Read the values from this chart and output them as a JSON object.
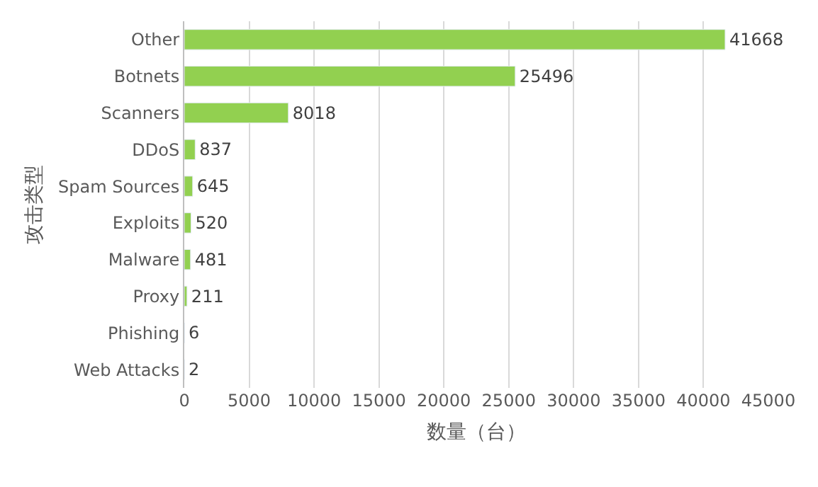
{
  "chart_data": {
    "type": "bar",
    "orientation": "horizontal",
    "xlabel": "数量（台）",
    "ylabel": "攻击类型",
    "categories": [
      "Other",
      "Botnets",
      "Scanners",
      "DDoS",
      "Spam Sources",
      "Exploits",
      "Malware",
      "Proxy",
      "Phishing",
      "Web Attacks"
    ],
    "values": [
      41668,
      25496,
      8018,
      837,
      645,
      520,
      481,
      211,
      6,
      2
    ],
    "color": "#92d050",
    "data_labels": true,
    "grid": "x",
    "legend": false,
    "xlim": [
      0,
      45000
    ],
    "xticks": [
      0,
      5000,
      10000,
      15000,
      20000,
      25000,
      30000,
      35000,
      40000,
      45000
    ]
  }
}
